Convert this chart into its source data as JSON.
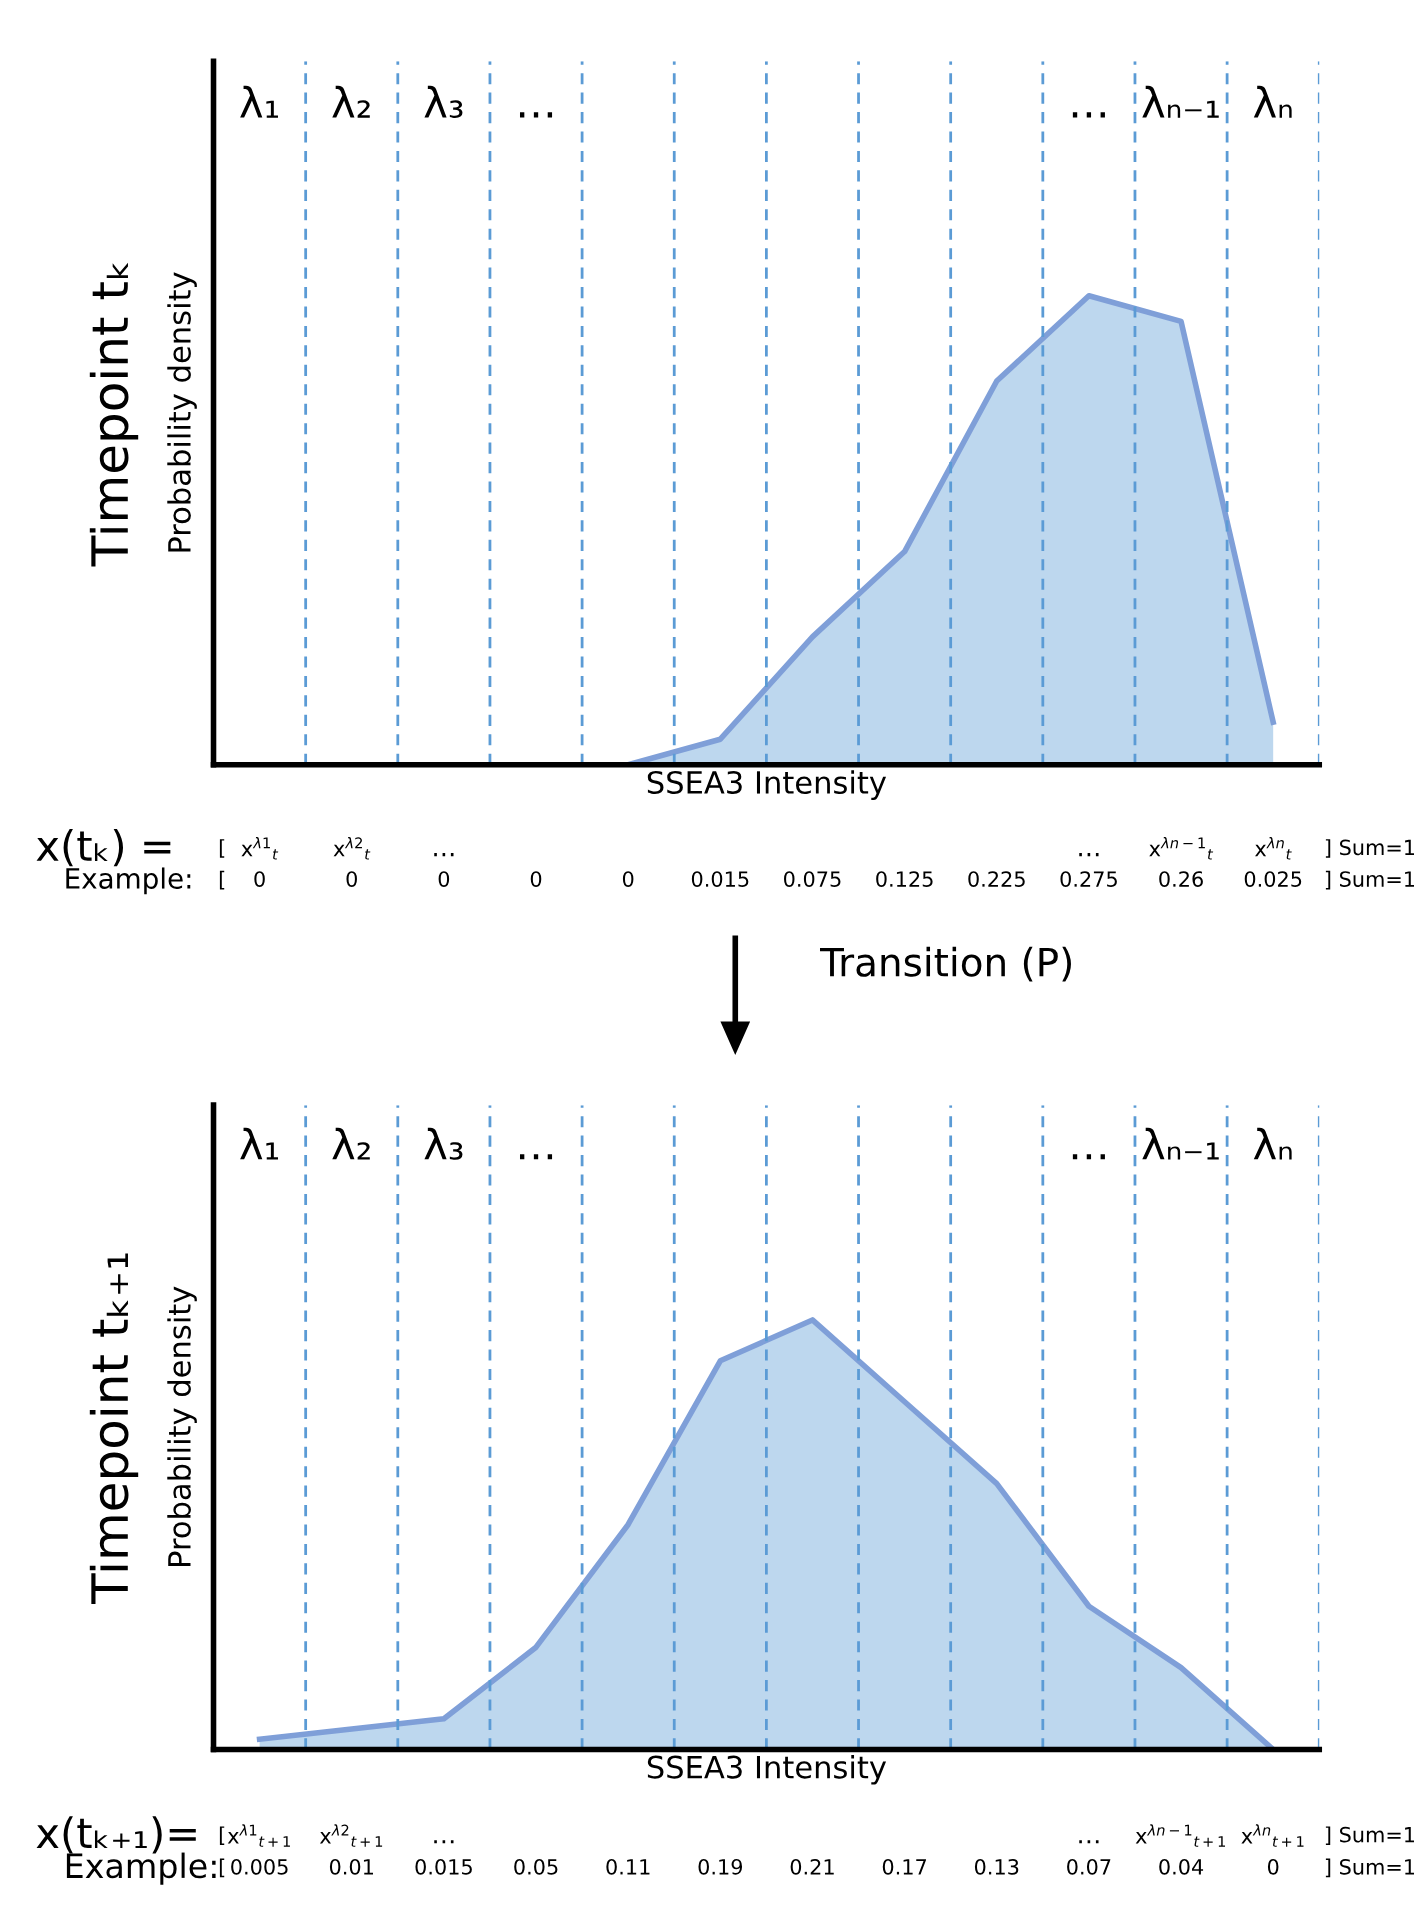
{
  "chart_data": [
    {
      "type": "area",
      "title": "Timepoint tₖ",
      "ylabel": "Probability density",
      "xlabel": "SSEA3 Intensity",
      "categories": [
        "λ₁",
        "λ₂",
        "λ₃",
        "…",
        null,
        null,
        null,
        null,
        null,
        "…",
        "λₙ₋₁",
        "λₙ"
      ],
      "values": [
        0,
        0,
        0,
        0,
        0,
        0.015,
        0.075,
        0.125,
        0.225,
        0.275,
        0.26,
        0.025
      ],
      "value_labels": [
        "0",
        "0",
        "0",
        "0",
        "0",
        "0.015",
        "0.075",
        "0.125",
        "0.225",
        "0.275",
        "0.26",
        "0.025"
      ],
      "color": "#7f9fd8",
      "grid": "x",
      "annotations": [
        "x(tₖ) =",
        "x$^{λ1}$$_{t}$",
        "x$^{λ2}$$_{t}$",
        "…",
        "…",
        "x$^{λn−1}$$_{t}$",
        "x$^{λn}$$_{t}$",
        "Example:",
        "[",
        "] Sum=1",
        "[",
        "] Sum=1",
        "Transition (P)"
      ]
    },
    {
      "type": "area",
      "title": "Timepoint tₖ₊₁",
      "ylabel": "Probability density",
      "xlabel": "SSEA3 Intensity",
      "categories": [
        "λ₁",
        "λ₂",
        "λ₃",
        "…",
        null,
        null,
        null,
        null,
        null,
        "…",
        "λₙ₋₁",
        "λₙ"
      ],
      "values": [
        0.005,
        0.01,
        0.015,
        0.05,
        0.11,
        0.19,
        0.21,
        0.17,
        0.13,
        0.07,
        0.04,
        0
      ],
      "value_labels": [
        "0.005",
        "0.01",
        "0.015",
        "0.05",
        "0.11",
        "0.19",
        "0.21",
        "0.17",
        "0.13",
        "0.07",
        "0.04",
        "0"
      ],
      "color": "#7f9fd8",
      "grid": "x",
      "annotations": [
        "x(tₖ₊₁)=",
        "x$^{λ1}$$_{t+1}$",
        "x$^{λ2}$$_{t+1}$",
        "…",
        "…",
        "x$^{λn−1}$$_{t+1}$",
        "x$^{λn}$$_{t+1}$",
        "Example:",
        "[",
        "] Sum=1",
        "[",
        "] Sum=1"
      ]
    }
  ]
}
